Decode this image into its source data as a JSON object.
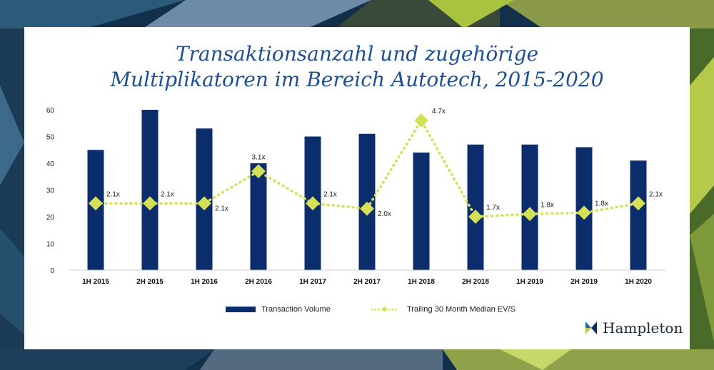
{
  "chart_data": {
    "type": "bar",
    "title_lines": [
      "Transaktionsanzahl und zugehörige",
      "Multiplikatoren im Bereich Autotech, 2015-2020"
    ],
    "categories": [
      "1H 2015",
      "2H 2015",
      "1H 2016",
      "2H 2016",
      "1H 2017",
      "2H 2017",
      "1H 2018",
      "2H 2018",
      "1H 2019",
      "2H 2019",
      "1H 2020"
    ],
    "ylim": [
      0,
      60
    ],
    "yticks": [
      "0",
      "10",
      "20",
      "30",
      "40",
      "50",
      "60"
    ],
    "grid": false,
    "series": [
      {
        "name": "Transaction Volume",
        "type": "bar",
        "color": "#0c2d6b",
        "values": [
          45,
          60,
          53,
          40,
          50,
          51,
          44,
          47,
          47,
          46,
          41
        ]
      },
      {
        "name": "Trailing 30 Month Median EV/S",
        "type": "line",
        "color": "#d4e157",
        "values": [
          2.1,
          2.1,
          2.1,
          3.1,
          2.1,
          2.0,
          4.7,
          1.7,
          1.8,
          1.8,
          2.1
        ],
        "labels": [
          "2.1x",
          "2.1x",
          "2.1x",
          "3.1x",
          "2.1x",
          "2.0x",
          "4.7x",
          "1.7x",
          "1.8x",
          "1.8x",
          "2.1x"
        ],
        "plotted_on_axis": [
          25,
          25,
          25,
          37,
          25,
          23,
          56,
          20,
          21,
          21.5,
          25
        ]
      }
    ],
    "legend_position": "bottom"
  },
  "brand": {
    "name": "Hampleton",
    "logo": "hampleton-logo-icon"
  }
}
